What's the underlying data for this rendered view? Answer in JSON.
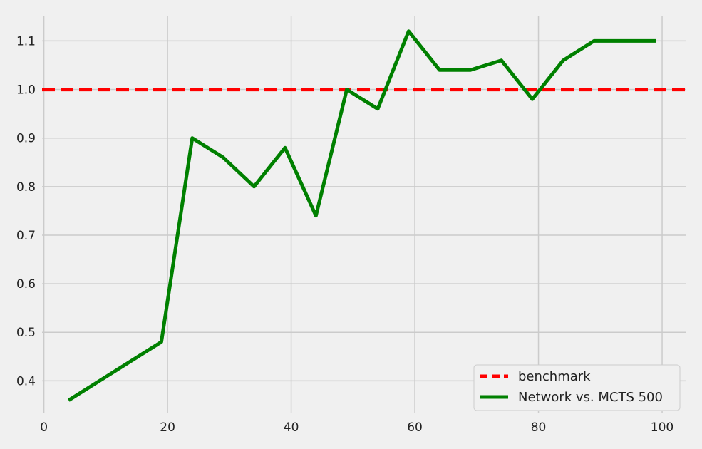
{
  "chart_data": {
    "type": "line",
    "title": "",
    "xlabel": "",
    "ylabel": "",
    "xlim": [
      -0.3,
      103.8
    ],
    "ylim": [
      0.333,
      1.152
    ],
    "x_ticks": [
      0,
      20,
      40,
      60,
      80,
      100
    ],
    "y_ticks": [
      0.4,
      0.5,
      0.6,
      0.7,
      0.8,
      0.9,
      1.0,
      1.1
    ],
    "x_tick_labels": [
      "0",
      "20",
      "40",
      "60",
      "80",
      "100"
    ],
    "y_tick_labels": [
      "0.4",
      "0.5",
      "0.6",
      "0.7",
      "0.8",
      "0.9",
      "1.0",
      "1.1"
    ],
    "grid": true,
    "legend_position": "lower-right",
    "series": [
      {
        "name": "benchmark",
        "style": "dashed",
        "color": "#ff0000",
        "x": [
          -0.3,
          103.8
        ],
        "y": [
          1.0,
          1.0
        ]
      },
      {
        "name": "Network vs. MCTS 500",
        "style": "solid",
        "color": "#008000",
        "x": [
          4,
          19,
          24,
          29,
          34,
          39,
          44,
          49,
          54,
          59,
          64,
          69,
          74,
          79,
          84,
          89,
          94,
          99
        ],
        "y": [
          0.36,
          0.48,
          0.9,
          0.86,
          0.8,
          0.88,
          0.74,
          1.0,
          0.96,
          1.12,
          1.04,
          1.04,
          1.06,
          0.98,
          1.06,
          1.1,
          1.1,
          1.1
        ]
      }
    ]
  }
}
